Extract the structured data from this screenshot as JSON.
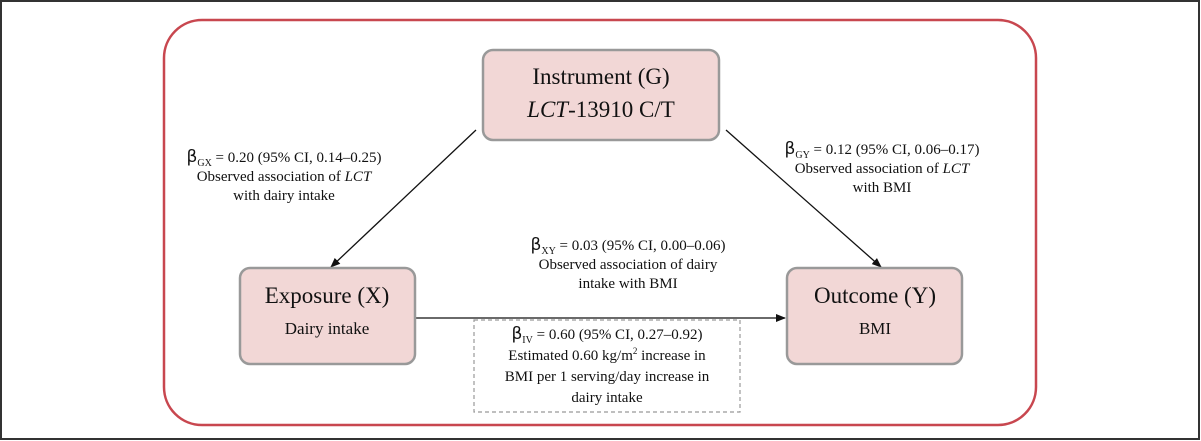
{
  "nodes": [
    {
      "title": "Instrument (G)",
      "subtitle": [
        {
          "text": "LCT",
          "italic": true
        },
        {
          "text": "-13910 C/T"
        }
      ]
    },
    {
      "title": "Exposure (X)",
      "subtitle": [
        {
          "text": "Dairy intake"
        }
      ]
    },
    {
      "title": "Outcome (Y)",
      "subtitle": [
        {
          "text": "BMI"
        }
      ]
    }
  ],
  "edges": [
    {
      "symbol": "β",
      "subscript": "GX",
      "estimate": " = 0.20 (95% CI, 0.14–0.25)",
      "lines": [
        [
          {
            "text": "Observed association of "
          },
          {
            "text": "LCT",
            "italic": true
          }
        ],
        [
          {
            "text": "with dairy intake"
          }
        ]
      ]
    },
    {
      "symbol": "β",
      "subscript": "GY",
      "estimate": " = 0.12 (95% CI, 0.06–0.17)",
      "lines": [
        [
          {
            "text": "Observed association of "
          },
          {
            "text": "LCT",
            "italic": true
          }
        ],
        [
          {
            "text": "with BMI"
          }
        ]
      ]
    },
    {
      "symbol": "β",
      "subscript": "XY",
      "estimate": " = 0.03 (95% CI, 0.00–0.06)",
      "lines": [
        [
          {
            "text": "Observed association of dairy"
          }
        ],
        [
          {
            "text": "intake with BMI"
          }
        ]
      ]
    }
  ],
  "iv_estimate": {
    "symbol": "β",
    "subscript": "IV",
    "estimate": " = 0.60 (95% CI, 0.27–0.92)",
    "lines": [
      [
        {
          "text": "Estimated 0.60 kg/m"
        },
        {
          "text": "2",
          "superscript": true
        },
        {
          "text": " increase in"
        }
      ],
      [
        {
          "text": "BMI per 1 serving/day increase in"
        }
      ],
      [
        {
          "text": "dairy intake"
        }
      ]
    ]
  }
}
